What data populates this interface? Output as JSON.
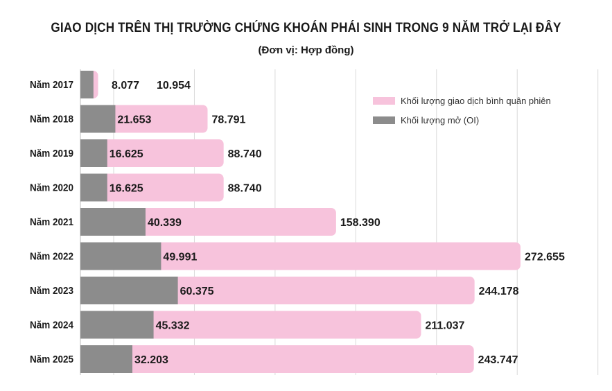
{
  "title": "GIAO DỊCH TRÊN THỊ TRƯỜNG CHỨNG KHOÁN PHÁI SINH TRONG 9 NĂM TRỞ LẠI ĐÂY",
  "subtitle": "(Đơn vị: Hợp đồng)",
  "legend": [
    {
      "label": "Khối lượng giao dịch bình quân phiên",
      "color": "#f7c3dc"
    },
    {
      "label": "Khối lượng mở (OI)",
      "color": "#8c8c8c"
    }
  ],
  "chart_data": {
    "type": "bar",
    "orientation": "horizontal",
    "stacked_overlay": true,
    "categories": [
      "Năm 2017",
      "Năm 2018",
      "Năm 2019",
      "Năm 2020",
      "Năm 2021",
      "Năm 2022",
      "Năm 2023",
      "Năm 2024",
      "Năm 2025"
    ],
    "series": [
      {
        "name": "Khối lượng giao dịch bình quân phiên",
        "color": "#f7c3dc",
        "values": [
          10954,
          78791,
          88740,
          88740,
          158390,
          272655,
          244178,
          211037,
          243747
        ],
        "labels": [
          "10.954",
          "78.791",
          "88.740",
          "88.740",
          "158.390",
          "272.655",
          "244.178",
          "211.037",
          "243.747"
        ]
      },
      {
        "name": "Khối lượng mở (OI)",
        "color": "#8c8c8c",
        "values": [
          8077,
          21653,
          16625,
          16625,
          40339,
          49991,
          60375,
          45332,
          32203
        ],
        "labels": [
          "8.077",
          "21.653",
          "16.625",
          "16.625",
          "40.339",
          "49.991",
          "60.375",
          "45.332",
          "32.203"
        ]
      }
    ],
    "xlim": [
      0,
      300000
    ],
    "grid": true,
    "legend_position": "top-right"
  }
}
